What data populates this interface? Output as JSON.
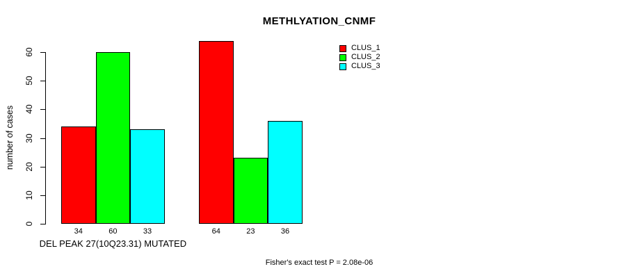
{
  "title": "METHLYATION_CNMF",
  "chart_data": {
    "type": "bar",
    "title": "METHLYATION_CNMF",
    "xlabel": "DEL PEAK 27(10Q23.31) MUTATED",
    "ylabel": "number of cases",
    "ylim": [
      0,
      60
    ],
    "yticks": [
      0,
      10,
      20,
      30,
      40,
      50,
      60
    ],
    "grid": false,
    "legend_position": "top-right",
    "categories": [
      "DEL PEAK 27(10Q23.31) MUTATED",
      ""
    ],
    "series": [
      {
        "name": "CLUS_1",
        "color": "#ff0000",
        "values": [
          34,
          64
        ]
      },
      {
        "name": "CLUS_2",
        "color": "#00ff00",
        "values": [
          60,
          23
        ]
      },
      {
        "name": "CLUS_3",
        "color": "#00ffff",
        "values": [
          33,
          36
        ]
      }
    ],
    "bar_value_labels_shown": true,
    "annotation": "Fisher's exact test P = 2.08e-06"
  },
  "colors": {
    "background": "#ffffff",
    "axis": "#000000",
    "text": "#000000",
    "bar_border": "#000000",
    "clus_1": "#ff0000",
    "clus_2": "#00ff00",
    "clus_3": "#00ffff"
  }
}
